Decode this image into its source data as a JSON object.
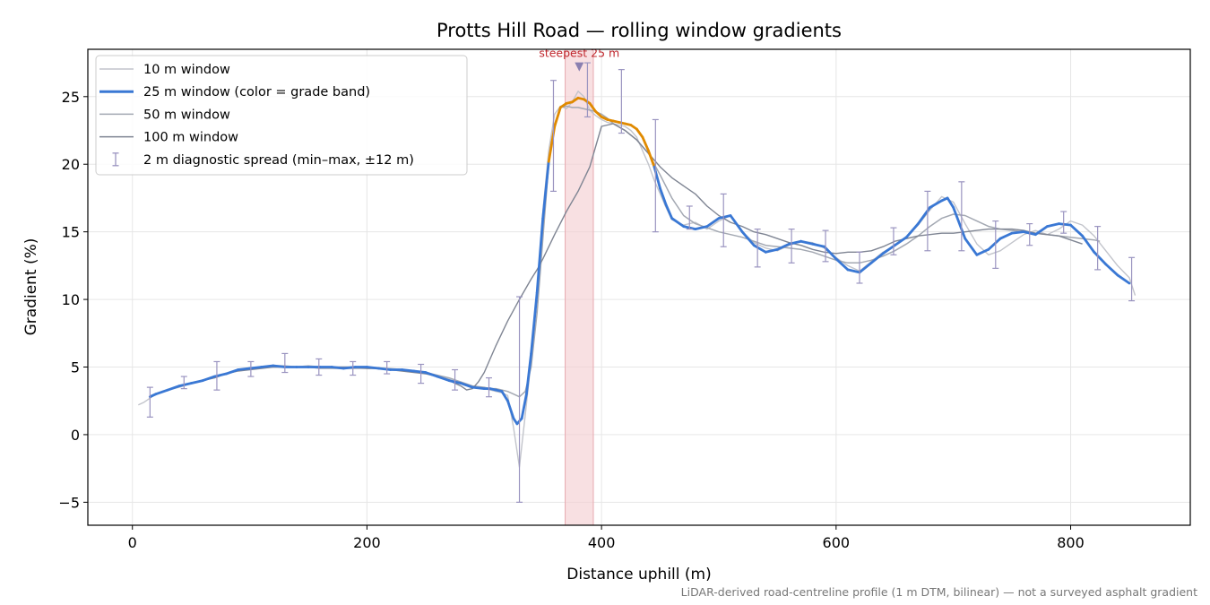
{
  "chart_data": {
    "type": "line",
    "title": "Protts Hill Road — rolling window gradients",
    "xlabel": "Distance uphill (m)",
    "ylabel": "Gradient (%)",
    "xlim": [
      -38,
      902
    ],
    "ylim": [
      -6.7,
      28.5
    ],
    "xticks": [
      0,
      200,
      400,
      600,
      800
    ],
    "yticks": [
      -5,
      0,
      5,
      10,
      15,
      20,
      25
    ],
    "grid": true,
    "legend_position": "top-left",
    "colors": {
      "w10": "#c2c4cb",
      "w25_blue": "#3a78d4",
      "w25_orange": "#e08a00",
      "w50": "#a3a8b2",
      "w100": "#7f8593",
      "errorbar": "#9a94c0",
      "highlight": "#f4cfd3",
      "annotation": "#c0272d",
      "grid": "#e6e6e6"
    },
    "series": [
      {
        "name": "10 m window",
        "key": "w10",
        "x": [
          5,
          10,
          15,
          20,
          30,
          40,
          50,
          60,
          70,
          80,
          90,
          100,
          110,
          120,
          130,
          140,
          150,
          160,
          170,
          180,
          190,
          200,
          210,
          220,
          230,
          240,
          250,
          260,
          270,
          280,
          290,
          300,
          305,
          310,
          315,
          320,
          325,
          330,
          335,
          340,
          345,
          350,
          355,
          360,
          365,
          370,
          375,
          380,
          385,
          390,
          395,
          400,
          405,
          410,
          415,
          420,
          425,
          430,
          435,
          440,
          445,
          450,
          455,
          460,
          470,
          480,
          490,
          500,
          510,
          520,
          530,
          540,
          550,
          560,
          570,
          580,
          590,
          600,
          610,
          620,
          630,
          640,
          650,
          660,
          670,
          680,
          690,
          700,
          710,
          720,
          730,
          740,
          750,
          760,
          770,
          780,
          790,
          800,
          810,
          820,
          830,
          840,
          850,
          855
        ],
        "y": [
          2.2,
          2.4,
          2.7,
          3.0,
          3.3,
          3.5,
          3.8,
          4.0,
          4.2,
          4.5,
          4.8,
          4.9,
          5.0,
          5.1,
          5.1,
          5.0,
          5.1,
          5.0,
          5.0,
          4.9,
          5.0,
          5.0,
          4.9,
          4.9,
          4.8,
          4.7,
          4.5,
          4.3,
          4.1,
          3.8,
          3.5,
          3.4,
          3.3,
          3.2,
          3.1,
          2.9,
          0.5,
          -2.4,
          1.5,
          5.5,
          10.5,
          16.5,
          21.0,
          23.7,
          24.3,
          24.1,
          24.6,
          25.4,
          25.0,
          24.0,
          23.6,
          23.3,
          23.1,
          23.0,
          22.9,
          22.8,
          22.5,
          22.0,
          21.0,
          20.0,
          18.8,
          17.8,
          16.8,
          15.9,
          15.5,
          15.7,
          15.2,
          15.8,
          16.2,
          15.0,
          14.2,
          13.8,
          13.6,
          14.0,
          14.3,
          14.2,
          13.8,
          13.1,
          12.5,
          12.1,
          12.8,
          13.5,
          14.0,
          14.6,
          15.5,
          16.6,
          17.6,
          17.2,
          15.6,
          14.1,
          13.3,
          13.6,
          14.2,
          14.8,
          15.1,
          14.8,
          15.2,
          15.8,
          15.5,
          14.7,
          13.6,
          12.5,
          11.6,
          10.3
        ]
      },
      {
        "name": "25 m window (color = grade band)",
        "key": "w25",
        "x": [
          15,
          20,
          30,
          40,
          50,
          60,
          70,
          80,
          90,
          100,
          110,
          120,
          130,
          140,
          150,
          160,
          170,
          180,
          190,
          200,
          210,
          220,
          230,
          240,
          250,
          260,
          270,
          280,
          290,
          300,
          305,
          310,
          315,
          320,
          325,
          328,
          332,
          336,
          340,
          345,
          350,
          355,
          360,
          365,
          370,
          375,
          380,
          385,
          390,
          395,
          400,
          405,
          410,
          415,
          420,
          425,
          430,
          435,
          440,
          445,
          450,
          455,
          460,
          470,
          480,
          490,
          500,
          510,
          520,
          530,
          540,
          550,
          560,
          570,
          580,
          590,
          600,
          610,
          620,
          630,
          640,
          650,
          660,
          670,
          680,
          690,
          695,
          700,
          710,
          720,
          730,
          740,
          750,
          760,
          770,
          780,
          790,
          800,
          810,
          820,
          830,
          840,
          850
        ],
        "y": [
          2.8,
          3.0,
          3.3,
          3.6,
          3.8,
          4.0,
          4.3,
          4.5,
          4.8,
          4.9,
          5.0,
          5.1,
          5.0,
          5.0,
          5.0,
          5.0,
          5.0,
          4.9,
          5.0,
          5.0,
          4.9,
          4.8,
          4.8,
          4.7,
          4.6,
          4.3,
          4.0,
          3.8,
          3.5,
          3.4,
          3.4,
          3.3,
          3.2,
          2.5,
          1.2,
          0.8,
          1.2,
          3.0,
          6.0,
          10.5,
          16.0,
          20.2,
          22.8,
          24.2,
          24.5,
          24.6,
          24.9,
          24.8,
          24.5,
          23.9,
          23.5,
          23.3,
          23.2,
          23.1,
          23.0,
          22.9,
          22.6,
          22.0,
          21.0,
          19.8,
          18.2,
          17.0,
          16.0,
          15.4,
          15.2,
          15.4,
          16.0,
          16.2,
          15.0,
          14.0,
          13.5,
          13.7,
          14.1,
          14.3,
          14.1,
          13.9,
          13.0,
          12.2,
          12.0,
          12.7,
          13.4,
          14.0,
          14.6,
          15.6,
          16.8,
          17.3,
          17.5,
          16.8,
          14.5,
          13.3,
          13.7,
          14.5,
          14.9,
          15.0,
          14.8,
          15.4,
          15.6,
          15.5,
          14.7,
          13.5,
          12.6,
          11.8,
          11.2
        ],
        "orange_range": [
          355,
          445
        ]
      },
      {
        "name": "50 m window",
        "key": "w50",
        "x": [
          25,
          30,
          40,
          50,
          60,
          70,
          80,
          90,
          100,
          110,
          120,
          130,
          140,
          150,
          160,
          170,
          180,
          190,
          200,
          210,
          220,
          230,
          240,
          250,
          260,
          270,
          280,
          290,
          300,
          305,
          310,
          315,
          320,
          325,
          330,
          335,
          340,
          345,
          350,
          355,
          360,
          365,
          370,
          375,
          380,
          385,
          390,
          395,
          400,
          405,
          410,
          420,
          430,
          440,
          450,
          460,
          470,
          480,
          490,
          500,
          510,
          520,
          530,
          540,
          550,
          560,
          570,
          580,
          590,
          600,
          610,
          620,
          630,
          640,
          650,
          660,
          670,
          680,
          690,
          700,
          710,
          720,
          730,
          740,
          750,
          760,
          770,
          780,
          790,
          800,
          810,
          820,
          825
        ],
        "y": [
          3.2,
          3.3,
          3.6,
          3.8,
          4.0,
          4.3,
          4.5,
          4.8,
          4.9,
          5.0,
          5.0,
          5.0,
          5.0,
          5.0,
          4.9,
          4.9,
          4.9,
          4.9,
          4.9,
          4.9,
          4.8,
          4.8,
          4.7,
          4.6,
          4.4,
          4.2,
          3.9,
          3.6,
          3.5,
          3.4,
          3.4,
          3.3,
          3.2,
          3.0,
          2.8,
          3.2,
          5.0,
          9.0,
          14.5,
          20.0,
          23.0,
          24.2,
          24.3,
          24.2,
          24.2,
          24.1,
          24.0,
          23.9,
          23.7,
          23.4,
          23.0,
          22.5,
          21.8,
          20.8,
          19.2,
          17.5,
          16.2,
          15.6,
          15.3,
          15.0,
          14.8,
          14.6,
          14.3,
          14.0,
          13.9,
          13.8,
          13.7,
          13.5,
          13.2,
          12.9,
          12.7,
          12.7,
          12.9,
          13.2,
          13.6,
          14.1,
          14.7,
          15.4,
          16.0,
          16.3,
          16.2,
          15.8,
          15.4,
          15.2,
          15.1,
          15.0,
          14.9,
          14.8,
          14.7,
          14.6,
          14.5,
          14.4,
          14.3
        ]
      },
      {
        "name": "100 m window",
        "key": "w100",
        "x": [
          50,
          60,
          70,
          80,
          90,
          100,
          110,
          120,
          130,
          140,
          150,
          160,
          170,
          180,
          190,
          200,
          210,
          220,
          230,
          240,
          250,
          260,
          270,
          280,
          285,
          290,
          295,
          300,
          305,
          310,
          320,
          330,
          340,
          345,
          350,
          360,
          370,
          380,
          390,
          400,
          410,
          420,
          430,
          440,
          450,
          460,
          470,
          480,
          490,
          500,
          510,
          520,
          530,
          540,
          550,
          560,
          570,
          580,
          590,
          600,
          610,
          620,
          630,
          640,
          650,
          660,
          670,
          680,
          690,
          700,
          710,
          720,
          730,
          740,
          750,
          760,
          770,
          780,
          790,
          800,
          810
        ],
        "y": [
          3.8,
          4.0,
          4.2,
          4.5,
          4.7,
          4.8,
          4.9,
          5.0,
          5.0,
          5.0,
          5.0,
          5.0,
          5.0,
          5.0,
          5.0,
          4.9,
          4.9,
          4.8,
          4.7,
          4.6,
          4.5,
          4.3,
          4.0,
          3.6,
          3.3,
          3.4,
          3.9,
          4.6,
          5.6,
          6.6,
          8.4,
          10.0,
          11.5,
          12.2,
          13.0,
          14.8,
          16.5,
          18.0,
          19.8,
          22.8,
          23.0,
          22.5,
          21.8,
          20.8,
          19.8,
          19.0,
          18.4,
          17.8,
          16.9,
          16.2,
          15.7,
          15.4,
          15.0,
          14.8,
          14.5,
          14.2,
          14.0,
          13.7,
          13.5,
          13.4,
          13.5,
          13.5,
          13.6,
          13.9,
          14.3,
          14.5,
          14.7,
          14.8,
          14.9,
          14.9,
          15.0,
          15.1,
          15.2,
          15.2,
          15.2,
          15.1,
          14.9,
          14.8,
          14.7,
          14.4,
          14.1
        ]
      }
    ],
    "error_bars": {
      "name": "2 m diagnostic spread (min–max, ±12 m)",
      "x": [
        15,
        44,
        72,
        101,
        130,
        159,
        188,
        217,
        246,
        275,
        304,
        330,
        359,
        388,
        417,
        446,
        475,
        504,
        533,
        562,
        591,
        620,
        649,
        678,
        707,
        736,
        765,
        794,
        823,
        852
      ],
      "y": [
        2.5,
        3.7,
        4.3,
        4.9,
        5.3,
        5.0,
        4.9,
        4.9,
        4.5,
        4.0,
        3.5,
        2.5,
        22.0,
        25.0,
        24.8,
        19.0,
        16.0,
        16.0,
        13.8,
        13.8,
        14.0,
        12.2,
        14.0,
        15.5,
        16.2,
        14.0,
        14.8,
        15.5,
        13.8,
        11.5
      ],
      "low": [
        1.3,
        3.4,
        3.3,
        4.3,
        4.6,
        4.4,
        4.4,
        4.5,
        3.8,
        3.3,
        2.8,
        -5.0,
        18.0,
        23.5,
        22.3,
        15.0,
        15.2,
        13.9,
        12.4,
        12.7,
        12.8,
        11.2,
        13.3,
        13.6,
        13.6,
        12.3,
        14.0,
        14.9,
        12.2,
        9.9
      ],
      "high": [
        3.5,
        4.3,
        5.4,
        5.4,
        6.0,
        5.6,
        5.4,
        5.4,
        5.2,
        4.8,
        4.2,
        10.2,
        26.2,
        27.5,
        27.0,
        23.3,
        16.9,
        17.8,
        15.2,
        15.2,
        15.1,
        13.5,
        15.3,
        18.0,
        18.7,
        15.8,
        15.6,
        16.5,
        15.4,
        13.1
      ]
    },
    "highlight": {
      "x0": 369,
      "x1": 393,
      "label": "steepest 25 m",
      "marker_x": 381,
      "marker_y": 27.2
    }
  },
  "footnote": "LiDAR-derived road-centreline profile (1 m DTM, bilinear) — not a surveyed asphalt gradient"
}
